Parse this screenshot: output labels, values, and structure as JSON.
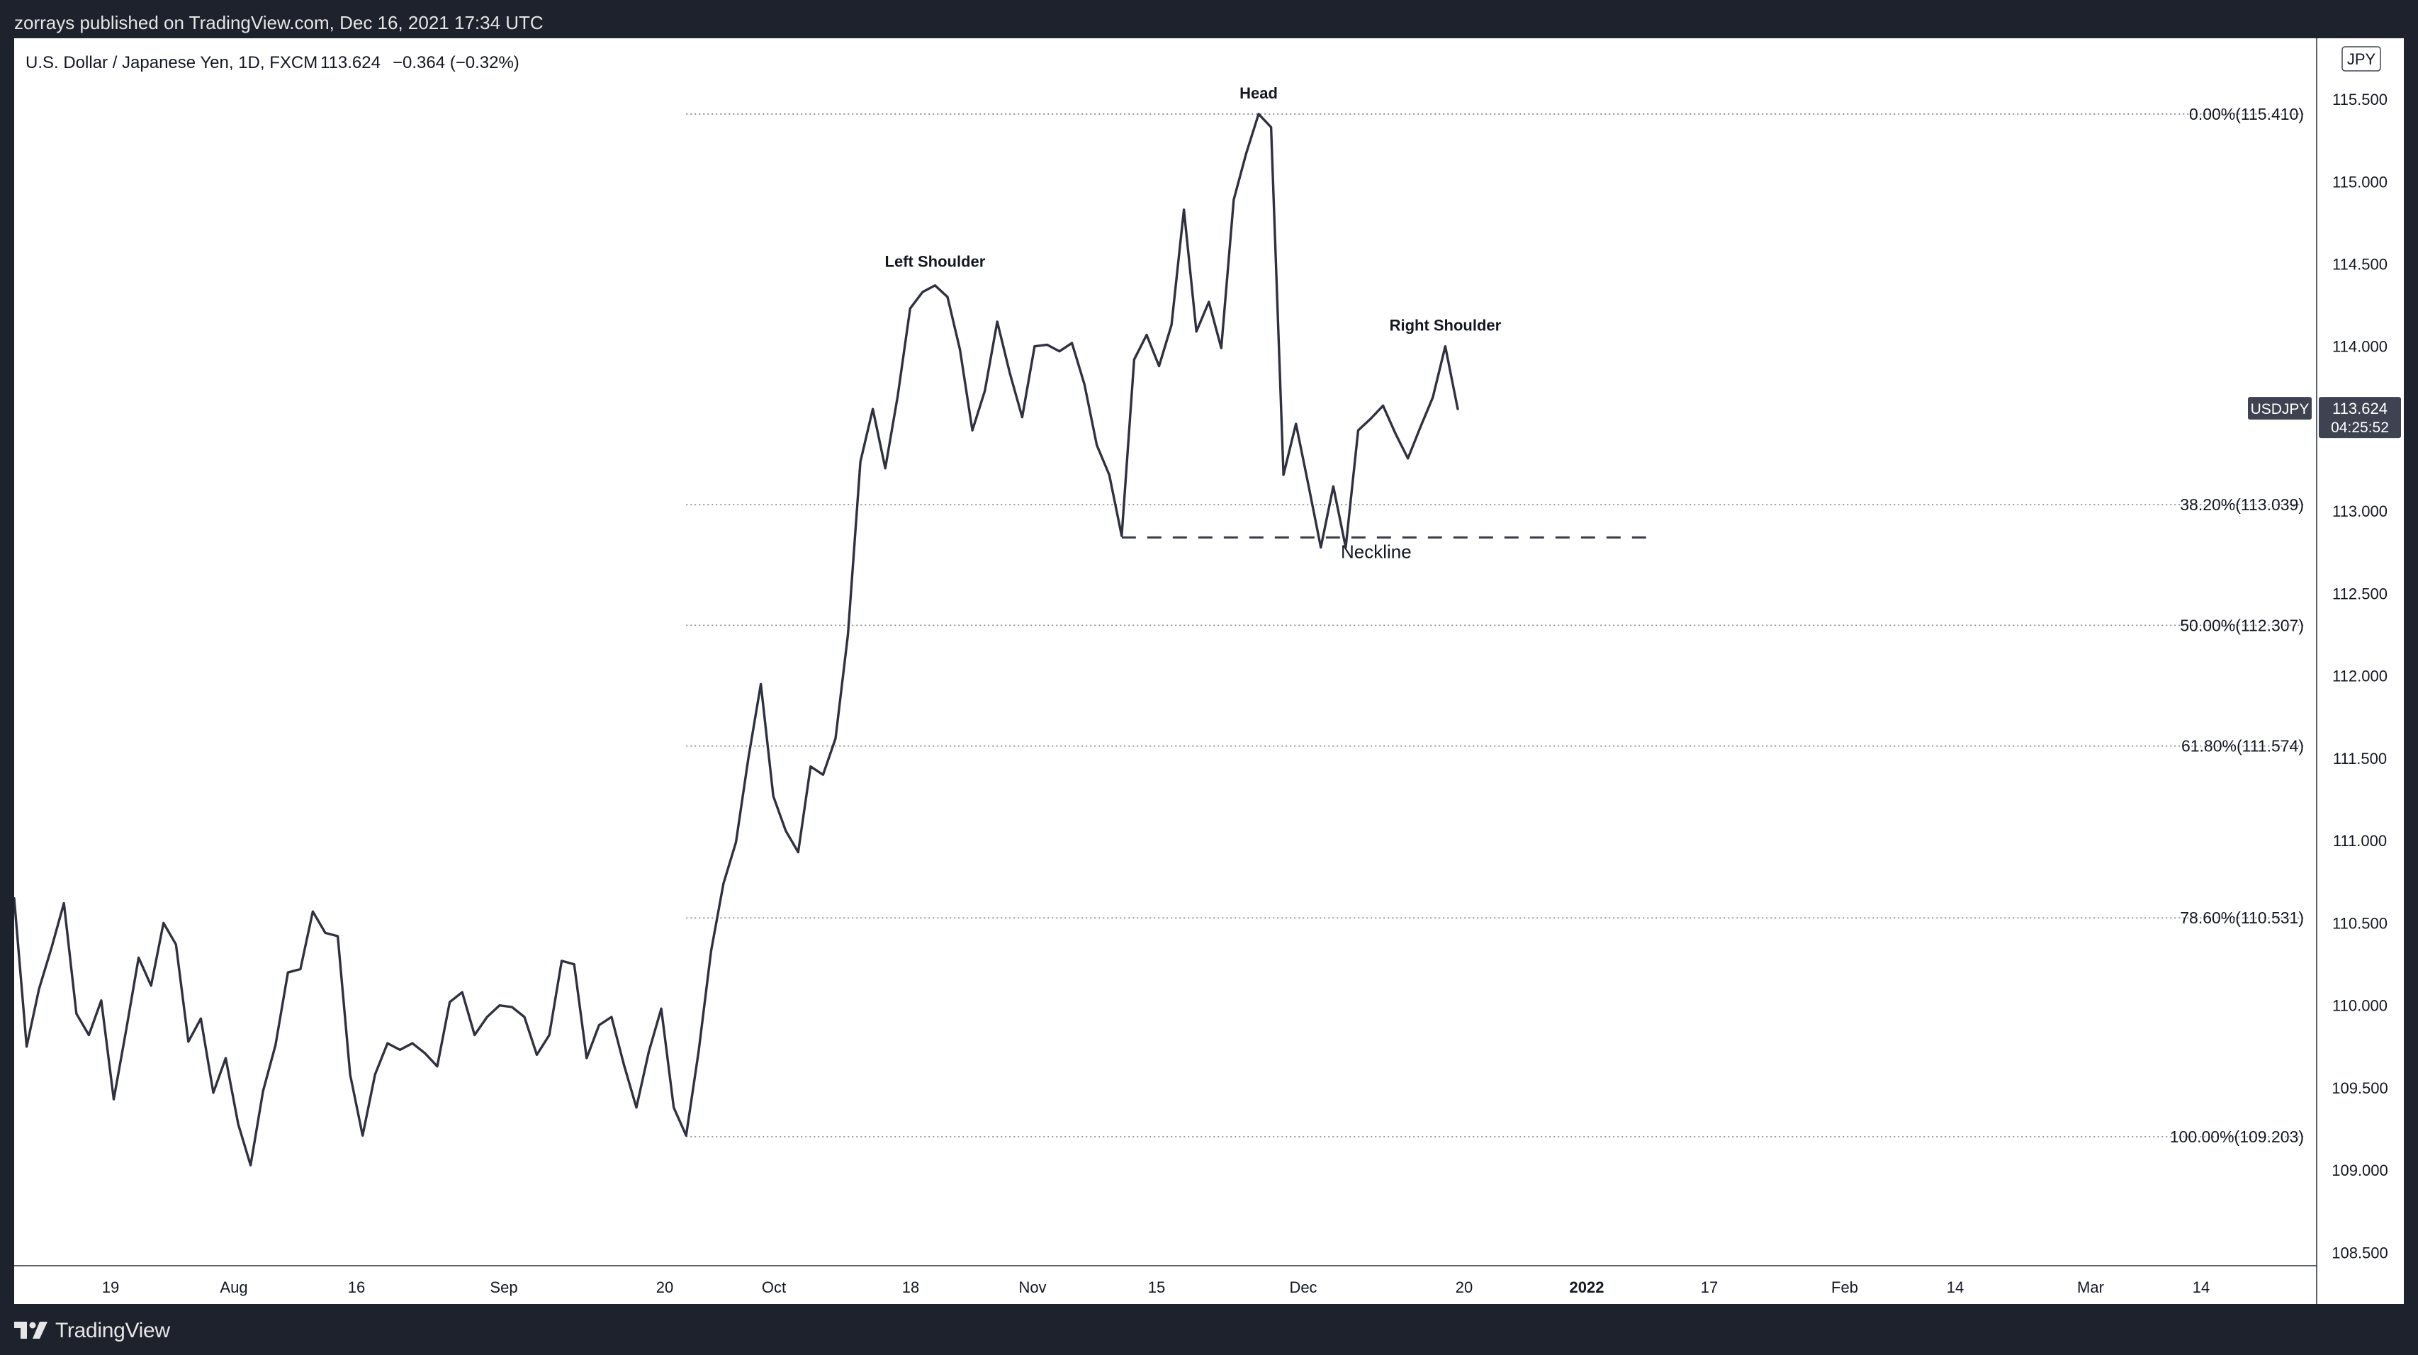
{
  "publisher_line": "zorrays published on TradingView.com, Dec 16, 2021 17:34 UTC",
  "legend": {
    "symbol_desc": "U.S. Dollar / Japanese Yen, 1D, FXCM",
    "price": "113.624",
    "change": "−0.364 (−0.32%)"
  },
  "brand": "TradingView",
  "colors": {
    "frame": "#1e222d",
    "chart_bg": "#ffffff",
    "line": "#2f3140",
    "fib_line": "#8a8d96",
    "label_bg": "#3f4250"
  },
  "chart_data": {
    "type": "line",
    "series": [
      {
        "values": [
          110.65,
          109.75,
          110.1,
          110.35,
          110.62,
          109.95,
          109.82,
          110.03,
          109.43,
          109.85,
          110.29,
          110.12,
          110.5,
          110.37,
          109.78,
          109.92,
          109.47,
          109.68,
          109.28,
          109.03,
          109.48,
          109.76,
          110.2,
          110.22,
          110.57,
          110.44,
          110.42,
          109.58,
          109.21,
          109.58,
          109.77,
          109.73,
          109.77,
          109.71,
          109.63,
          110.02,
          110.08,
          109.82,
          109.93,
          110.0,
          109.99,
          109.93,
          109.7,
          109.82,
          110.27,
          110.25,
          109.68,
          109.88,
          109.93,
          109.64,
          109.38,
          109.72,
          109.98,
          109.38,
          109.21,
          109.72,
          110.33,
          110.74,
          110.99,
          111.5,
          111.95,
          111.27,
          111.06,
          110.93,
          111.45,
          111.4,
          111.62,
          112.25,
          113.3,
          113.62,
          113.26,
          113.7,
          114.23,
          114.33,
          114.37,
          114.3,
          113.98,
          113.49,
          113.73,
          114.15,
          113.84,
          113.57,
          114.0,
          114.01,
          113.97,
          114.02,
          113.77,
          113.4,
          113.22,
          112.85,
          113.92,
          114.07,
          113.88,
          114.13,
          114.83,
          114.09,
          114.27,
          113.99,
          114.89,
          115.17,
          115.41,
          115.33,
          113.22,
          113.53,
          113.16,
          112.78,
          113.15,
          112.78,
          113.49,
          113.56,
          113.64,
          113.47,
          113.32,
          113.51,
          113.69,
          114.0,
          113.62
        ]
      }
    ],
    "y_axis": {
      "unit": "JPY",
      "ticks": [
        "115.500",
        "115.000",
        "114.500",
        "114.000",
        "113.000",
        "112.500",
        "112.000",
        "111.500",
        "111.000",
        "110.500",
        "110.000",
        "109.500",
        "109.000",
        "108.500"
      ],
      "range": [
        108.42,
        115.87
      ]
    },
    "x_axis": {
      "tick_labels": [
        "19",
        "Aug",
        "16",
        "Sep",
        "20",
        "Oct",
        "18",
        "Nov",
        "15",
        "Dec",
        "20",
        "2022",
        "17",
        "Feb",
        "14",
        "Mar",
        "14"
      ]
    },
    "fib_levels": [
      {
        "label": "0.00%(115.410)",
        "price": 115.41
      },
      {
        "label": "38.20%(113.039)",
        "price": 113.039
      },
      {
        "label": "50.00%(112.307)",
        "price": 112.307
      },
      {
        "label": "61.80%(111.574)",
        "price": 111.574
      },
      {
        "label": "78.60%(110.531)",
        "price": 110.531
      },
      {
        "label": "100.00%(109.203)",
        "price": 109.203
      }
    ],
    "neckline": {
      "label": "Neckline",
      "price": 112.84
    },
    "annotations": [
      {
        "label": "Head",
        "price": 115.41
      },
      {
        "label": "Left Shoulder",
        "price": 114.37
      },
      {
        "label": "Right Shoulder",
        "price": 114.0
      }
    ],
    "last_price_label": {
      "symbol": "USDJPY",
      "price": "113.624",
      "countdown": "04:25:52"
    },
    "grid": false
  }
}
